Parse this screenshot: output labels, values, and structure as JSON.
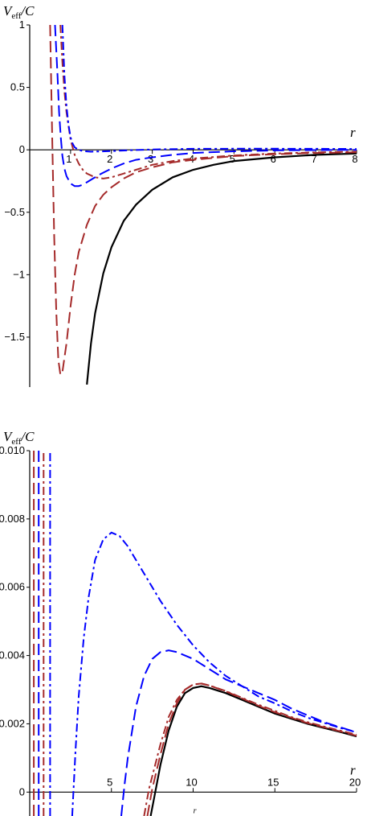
{
  "chart_data": [
    {
      "type": "line",
      "ylabel": "V_eff/C",
      "xlabel": "r",
      "xlim": [
        0,
        8
      ],
      "ylim": [
        -1.9,
        1
      ],
      "x_ticks": [
        1,
        2,
        3,
        4,
        5,
        6,
        7,
        8
      ],
      "x_tick_labels": [
        "1",
        "2",
        "3",
        "4",
        "5",
        "6",
        "7",
        "8"
      ],
      "y_ticks": [
        -1.5,
        -1,
        -0.5,
        0,
        0.5,
        1
      ],
      "y_tick_labels": [
        "-1.5",
        "-1",
        "-0.5",
        "0",
        "0.5",
        "1"
      ],
      "series": [
        {
          "style": "solid",
          "color": "#000000",
          "x": [
            1.4,
            1.5,
            1.6,
            1.8,
            2.0,
            2.3,
            2.6,
            3.0,
            3.5,
            4.0,
            4.5,
            5.0,
            6.0,
            7.0,
            8.0
          ],
          "y": [
            -1.88,
            -1.55,
            -1.31,
            -0.99,
            -0.78,
            -0.57,
            -0.44,
            -0.32,
            -0.22,
            -0.16,
            -0.12,
            -0.09,
            -0.06,
            -0.04,
            -0.03
          ]
        },
        {
          "style": "long-dash",
          "color": "#a52a2a",
          "x": [
            0.5,
            0.55,
            0.6,
            0.65,
            0.7,
            0.75,
            0.8,
            0.9,
            1.0,
            1.1,
            1.2,
            1.4,
            1.6,
            1.8,
            2.0,
            2.3,
            2.6,
            3.0,
            3.5,
            4.0,
            5.0,
            6.0,
            7.0,
            8.0
          ],
          "y": [
            1.0,
            0.1,
            -0.7,
            -1.3,
            -1.68,
            -1.8,
            -1.78,
            -1.55,
            -1.25,
            -1.0,
            -0.82,
            -0.6,
            -0.45,
            -0.36,
            -0.3,
            -0.23,
            -0.18,
            -0.14,
            -0.1,
            -0.08,
            -0.05,
            -0.035,
            -0.025,
            -0.02
          ]
        },
        {
          "style": "long-dash",
          "color": "#0000ff",
          "x": [
            0.62,
            0.68,
            0.72,
            0.76,
            0.8,
            0.85,
            0.9,
            1.0,
            1.1,
            1.2,
            1.3,
            1.5,
            1.7,
            2.0,
            2.3,
            2.6,
            3.0,
            3.5,
            4.0,
            5.0,
            6.0,
            7.0,
            8.0
          ],
          "y": [
            1.0,
            0.6,
            0.3,
            0.1,
            -0.05,
            -0.15,
            -0.21,
            -0.27,
            -0.29,
            -0.29,
            -0.28,
            -0.24,
            -0.2,
            -0.15,
            -0.11,
            -0.08,
            -0.06,
            -0.04,
            -0.025,
            -0.012,
            -0.005,
            -0.002,
            0.0
          ]
        },
        {
          "style": "dash-dot",
          "color": "#a52a2a",
          "x": [
            0.75,
            0.8,
            0.85,
            0.9,
            1.0,
            1.1,
            1.2,
            1.3,
            1.4,
            1.6,
            1.8,
            2.0,
            2.3,
            2.6,
            3.0,
            3.5,
            4.0,
            5.0,
            6.0,
            7.0,
            8.0
          ],
          "y": [
            1.0,
            0.7,
            0.47,
            0.3,
            0.08,
            -0.04,
            -0.11,
            -0.16,
            -0.19,
            -0.22,
            -0.23,
            -0.22,
            -0.19,
            -0.16,
            -0.12,
            -0.09,
            -0.07,
            -0.045,
            -0.03,
            -0.02,
            -0.015
          ]
        },
        {
          "style": "dash-dot",
          "color": "#0000ff",
          "x": [
            0.8,
            0.85,
            0.9,
            0.95,
            1.0,
            1.05,
            1.1,
            1.2,
            1.3,
            1.5,
            2.0,
            2.5,
            3.0,
            4.0,
            5.0,
            6.0,
            7.0,
            8.0
          ],
          "y": [
            1.0,
            0.6,
            0.35,
            0.2,
            0.1,
            0.05,
            0.02,
            0.0,
            -0.01,
            -0.015,
            -0.01,
            -0.003,
            0.003,
            0.008,
            0.009,
            0.009,
            0.008,
            0.007
          ]
        }
      ]
    },
    {
      "type": "line",
      "ylabel": "V_eff/C",
      "xlabel": "r",
      "xlim": [
        0,
        20
      ],
      "ylim": [
        -0.0007,
        0.01
      ],
      "x_ticks": [
        5,
        10,
        15,
        20
      ],
      "x_tick_labels": [
        "5",
        "10",
        "15",
        "20"
      ],
      "y_ticks": [
        0,
        0.002,
        0.004,
        0.006,
        0.008,
        0.01
      ],
      "y_tick_labels": [
        "0",
        "0.002",
        "0.004",
        "0.006",
        "0.008",
        "0.010"
      ],
      "series": [
        {
          "style": "solid",
          "color": "#000000",
          "x": [
            7.4,
            7.6,
            8.0,
            8.5,
            9.0,
            9.5,
            10.0,
            10.5,
            11.0,
            12.0,
            13.0,
            14.0,
            15.0,
            16.0,
            17.0,
            18.0,
            19.0,
            20.0
          ],
          "y": [
            -0.0007,
            -0.0002,
            0.0008,
            0.0018,
            0.0025,
            0.0029,
            0.00305,
            0.0031,
            0.00305,
            0.0029,
            0.0027,
            0.0025,
            0.0023,
            0.00215,
            0.002,
            0.00188,
            0.00176,
            0.00163
          ]
        },
        {
          "style": "long-dash",
          "color": "#a52a2a",
          "x": [
            7.2,
            7.5,
            8.0,
            8.5,
            9.0,
            9.5,
            10.0,
            10.5,
            11.0,
            12.0,
            13.0,
            14.0,
            15.0,
            16.0,
            17.0,
            18.0,
            19.0,
            20.0
          ],
          "y": [
            -0.0007,
            0.0001,
            0.0011,
            0.002,
            0.0026,
            0.003,
            0.00315,
            0.00318,
            0.00312,
            0.00295,
            0.00274,
            0.00253,
            0.00234,
            0.00218,
            0.00202,
            0.0019,
            0.00178,
            0.00165
          ]
        },
        {
          "style": "long-dash",
          "color": "#0000ff",
          "x": [
            5.6,
            5.8,
            6.0,
            6.5,
            7.0,
            7.5,
            8.0,
            8.5,
            9.0,
            10.0,
            11.0,
            12.0,
            13.0,
            14.0,
            15.0,
            16.0,
            17.0,
            18.0,
            19.0,
            20.0
          ],
          "y": [
            -0.0007,
            0.0002,
            0.001,
            0.0025,
            0.0034,
            0.0039,
            0.0041,
            0.00415,
            0.0041,
            0.0039,
            0.0036,
            0.0033,
            0.0031,
            0.0029,
            0.0027,
            0.00245,
            0.00225,
            0.00205,
            0.0019,
            0.00175
          ]
        },
        {
          "style": "dash-dot",
          "color": "#a52a2a",
          "x": [
            7.0,
            7.3,
            8.0,
            8.5,
            9.0,
            9.5,
            10.0,
            10.5,
            11.0,
            12.0,
            13.0,
            14.0,
            15.0,
            16.0,
            17.0,
            18.0,
            19.0,
            20.0
          ],
          "y": [
            -0.0007,
            0.0001,
            0.0014,
            0.0022,
            0.0027,
            0.003,
            0.00315,
            0.00318,
            0.00312,
            0.00296,
            0.00276,
            0.00256,
            0.00238,
            0.0022,
            0.00205,
            0.00192,
            0.0018,
            0.00168
          ]
        },
        {
          "style": "dash-dot",
          "color": "#0000ff",
          "x": [
            2.6,
            2.8,
            3.0,
            3.3,
            3.6,
            4.0,
            4.5,
            5.0,
            5.5,
            6.0,
            7.0,
            8.0,
            9.0,
            10.0,
            11.0,
            12.0,
            13.0,
            14.0,
            15.0,
            16.0,
            17.0,
            18.0,
            19.0,
            20.0
          ],
          "y": [
            -0.0007,
            0.0012,
            0.0028,
            0.0045,
            0.0057,
            0.0068,
            0.0074,
            0.0076,
            0.0075,
            0.0072,
            0.0064,
            0.0056,
            0.0049,
            0.0043,
            0.0038,
            0.0034,
            0.0031,
            0.0028,
            0.0026,
            0.00237,
            0.00218,
            0.00203,
            0.00188,
            0.00175
          ]
        },
        {
          "style": "long-dash",
          "color": "#a52a2a",
          "x": [
            0.25,
            0.25
          ],
          "y": [
            -0.0007,
            0.01
          ]
        },
        {
          "style": "long-dash",
          "color": "#0000ff",
          "x": [
            0.55,
            0.55
          ],
          "y": [
            -0.0007,
            0.01
          ]
        },
        {
          "style": "dash-dot",
          "color": "#a52a2a",
          "x": [
            0.85,
            0.85
          ],
          "y": [
            -0.0007,
            0.01
          ]
        },
        {
          "style": "dash-dot",
          "color": "#0000ff",
          "x": [
            1.25,
            1.25
          ],
          "y": [
            -0.0007,
            0.01
          ]
        }
      ]
    }
  ]
}
